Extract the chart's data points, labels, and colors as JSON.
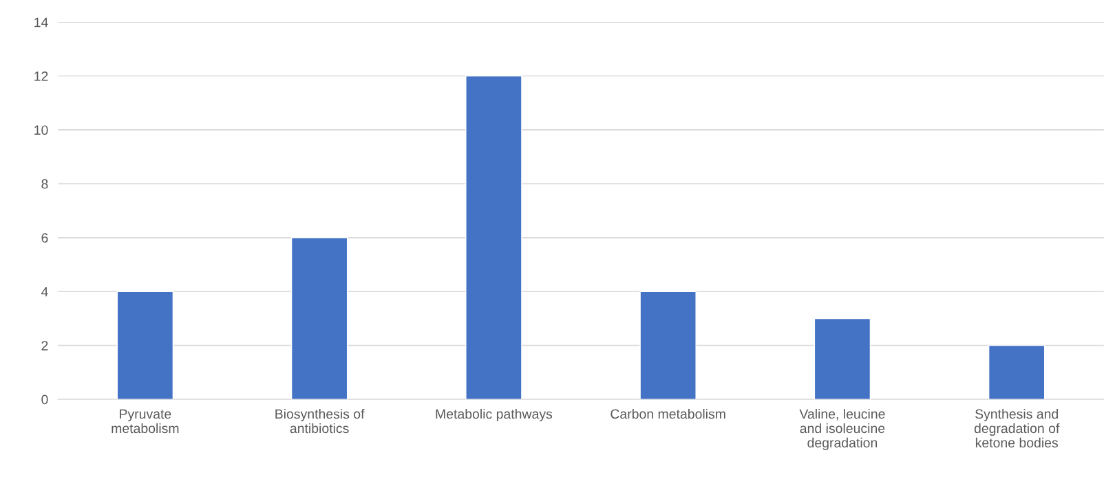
{
  "chart_data": {
    "type": "bar",
    "categories": [
      "Pyruvate metabolism",
      "Biosynthesis of antibiotics",
      "Metabolic pathways",
      "Carbon metabolism",
      "Valine, leucine and isoleucine degradation",
      "Synthesis and degradation of ketone bodies"
    ],
    "values": [
      4,
      6,
      12,
      4,
      3,
      2
    ],
    "color": "#4472c4",
    "ylim": [
      0,
      14
    ],
    "yticks": [
      0,
      2,
      4,
      6,
      8,
      10,
      12,
      14
    ],
    "grid": "y",
    "legend": false
  }
}
